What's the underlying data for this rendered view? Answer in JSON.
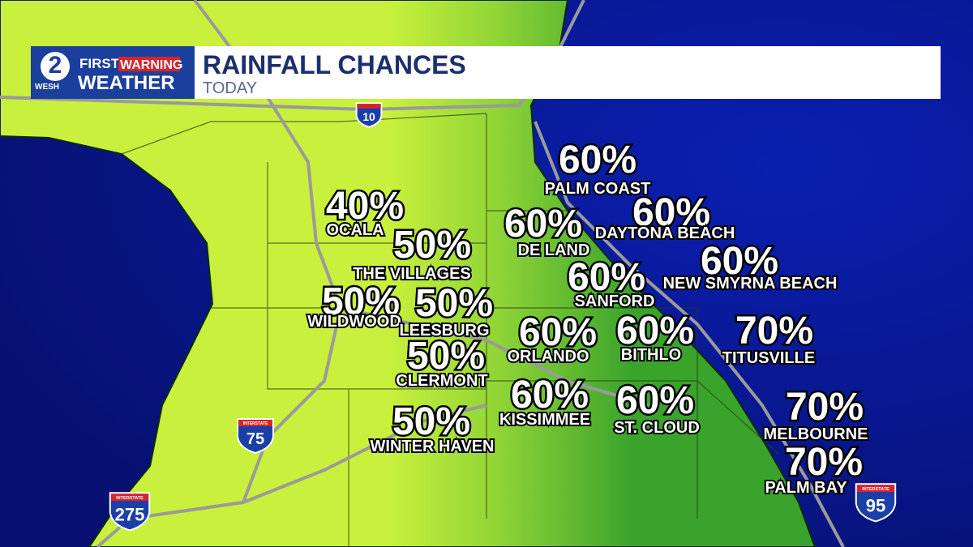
{
  "header": {
    "logo": {
      "station": "WESH",
      "channel": "2",
      "first": "FIRST",
      "warning": "WARNING",
      "weather": "WEATHER"
    },
    "title": "RAINFALL CHANCES",
    "subtitle": "TODAY"
  },
  "cities": [
    {
      "chance": "60%",
      "name": "PALM COAST"
    },
    {
      "chance": "40%",
      "name": "OCALA"
    },
    {
      "chance": "60%",
      "name": "DAYTONA BEACH"
    },
    {
      "chance": "60%",
      "name": "DE LAND"
    },
    {
      "chance": "50%",
      "name": "THE VILLAGES"
    },
    {
      "chance": "60%",
      "name": "NEW SMYRNA BEACH"
    },
    {
      "chance": "60%",
      "name": "SANFORD"
    },
    {
      "chance": "50%",
      "name": "WILDWOOD"
    },
    {
      "chance": "50%",
      "name": "LEESBURG"
    },
    {
      "chance": "60%",
      "name": "ORLANDO"
    },
    {
      "chance": "60%",
      "name": "BITHLO"
    },
    {
      "chance": "70%",
      "name": "TITUSVILLE"
    },
    {
      "chance": "50%",
      "name": "CLERMONT"
    },
    {
      "chance": "60%",
      "name": "KISSIMMEE"
    },
    {
      "chance": "60%",
      "name": "ST. CLOUD"
    },
    {
      "chance": "70%",
      "name": "MELBOURNE"
    },
    {
      "chance": "50%",
      "name": "WINTER HAVEN"
    },
    {
      "chance": "70%",
      "name": "PALM BAY"
    }
  ],
  "highway_shields": [
    {
      "number": "10"
    },
    {
      "label": "INTERSTATE",
      "number": "75"
    },
    {
      "label": "INTERSTATE",
      "number": "275"
    },
    {
      "label": "INTERSTATE",
      "number": "95"
    }
  ]
}
